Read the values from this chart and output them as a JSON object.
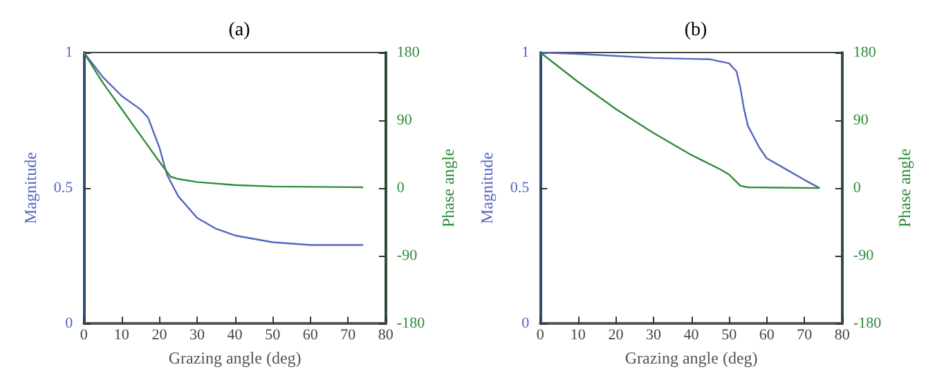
{
  "chart_data": [
    {
      "type": "line",
      "title": "(a)",
      "xlabel": "Grazing angle (deg)",
      "ylabel": "Magnitude",
      "y2label": "Phase angle",
      "xlim": [
        0,
        80
      ],
      "xticks": [
        0,
        10,
        20,
        30,
        40,
        50,
        60,
        70,
        80
      ],
      "ylim": [
        0,
        1
      ],
      "yticks": [
        0,
        0.5,
        1
      ],
      "y2lim": [
        -180,
        180
      ],
      "y2ticks": [
        -180,
        -90,
        0,
        90,
        180
      ],
      "grid": false,
      "series": [
        {
          "color": "#5565c0",
          "x": [
            0,
            5,
            10,
            15,
            17,
            20,
            22,
            25,
            30,
            35,
            40,
            50,
            60,
            74
          ],
          "values": [
            1,
            0.91,
            0.84,
            0.79,
            0.76,
            0.65,
            0.55,
            0.47,
            0.39,
            0.35,
            0.325,
            0.3,
            0.29,
            0.29
          ]
        },
        {
          "color": "#2e8b3a",
          "axis": "y2",
          "x": [
            0,
            5,
            10,
            15,
            20,
            23,
            25,
            30,
            40,
            50,
            74
          ],
          "values": [
            180,
            140,
            105,
            70,
            35,
            15,
            12,
            8,
            4,
            2,
            1
          ]
        }
      ]
    },
    {
      "type": "line",
      "title": "(b)",
      "xlabel": "Grazing angle (deg)",
      "ylabel": "Magnitude",
      "y2label": "Phase angle",
      "xlim": [
        0,
        80
      ],
      "xticks": [
        0,
        10,
        20,
        30,
        40,
        50,
        60,
        70,
        80
      ],
      "ylim": [
        0,
        1
      ],
      "yticks": [
        0,
        0.5,
        1
      ],
      "y2lim": [
        -180,
        180
      ],
      "y2ticks": [
        -180,
        -90,
        0,
        90,
        180
      ],
      "grid": false,
      "series": [
        {
          "color": "#5565c0",
          "x": [
            0,
            10,
            30,
            45,
            50,
            52,
            53,
            54,
            55,
            58,
            60,
            65,
            70,
            74
          ],
          "values": [
            1,
            0.995,
            0.98,
            0.975,
            0.96,
            0.93,
            0.87,
            0.79,
            0.73,
            0.65,
            0.61,
            0.57,
            0.53,
            0.5
          ]
        },
        {
          "color": "#2e8b3a",
          "axis": "y2",
          "x": [
            0,
            10,
            20,
            30,
            40,
            48,
            50,
            52,
            53,
            55,
            74
          ],
          "values": [
            180,
            141,
            105,
            73,
            44,
            24,
            18,
            8,
            3,
            1,
            0
          ]
        }
      ]
    }
  ]
}
